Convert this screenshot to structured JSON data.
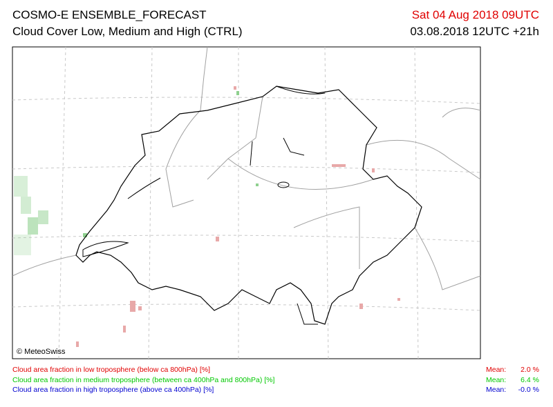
{
  "header": {
    "title": "COSMO-E ENSEMBLE_FORECAST",
    "subtitle": "Cloud Cover Low, Medium and High (CTRL)",
    "valid_time": "Sat 04 Aug 2018 09UTC",
    "run_time": "03.08.2018 12UTC +21h"
  },
  "map": {
    "credit": "© MeteoSwiss"
  },
  "legend": [
    {
      "label": "Cloud area fraction in low troposphere (below ca 800hPa) [%]",
      "mean_label": "Mean:",
      "mean": "2.0 %",
      "color": "#e00000"
    },
    {
      "label": "Cloud area fraction in medium troposphere (between ca 400hPa and 800hPa) [%]",
      "mean_label": "Mean:",
      "mean": "6.4 %",
      "color": "#00c800"
    },
    {
      "label": "Cloud area fraction in high troposphere (above ca 400hPa) [%]",
      "mean_label": "Mean:",
      "mean": "-0.0 %",
      "color": "#0000d0"
    }
  ]
}
